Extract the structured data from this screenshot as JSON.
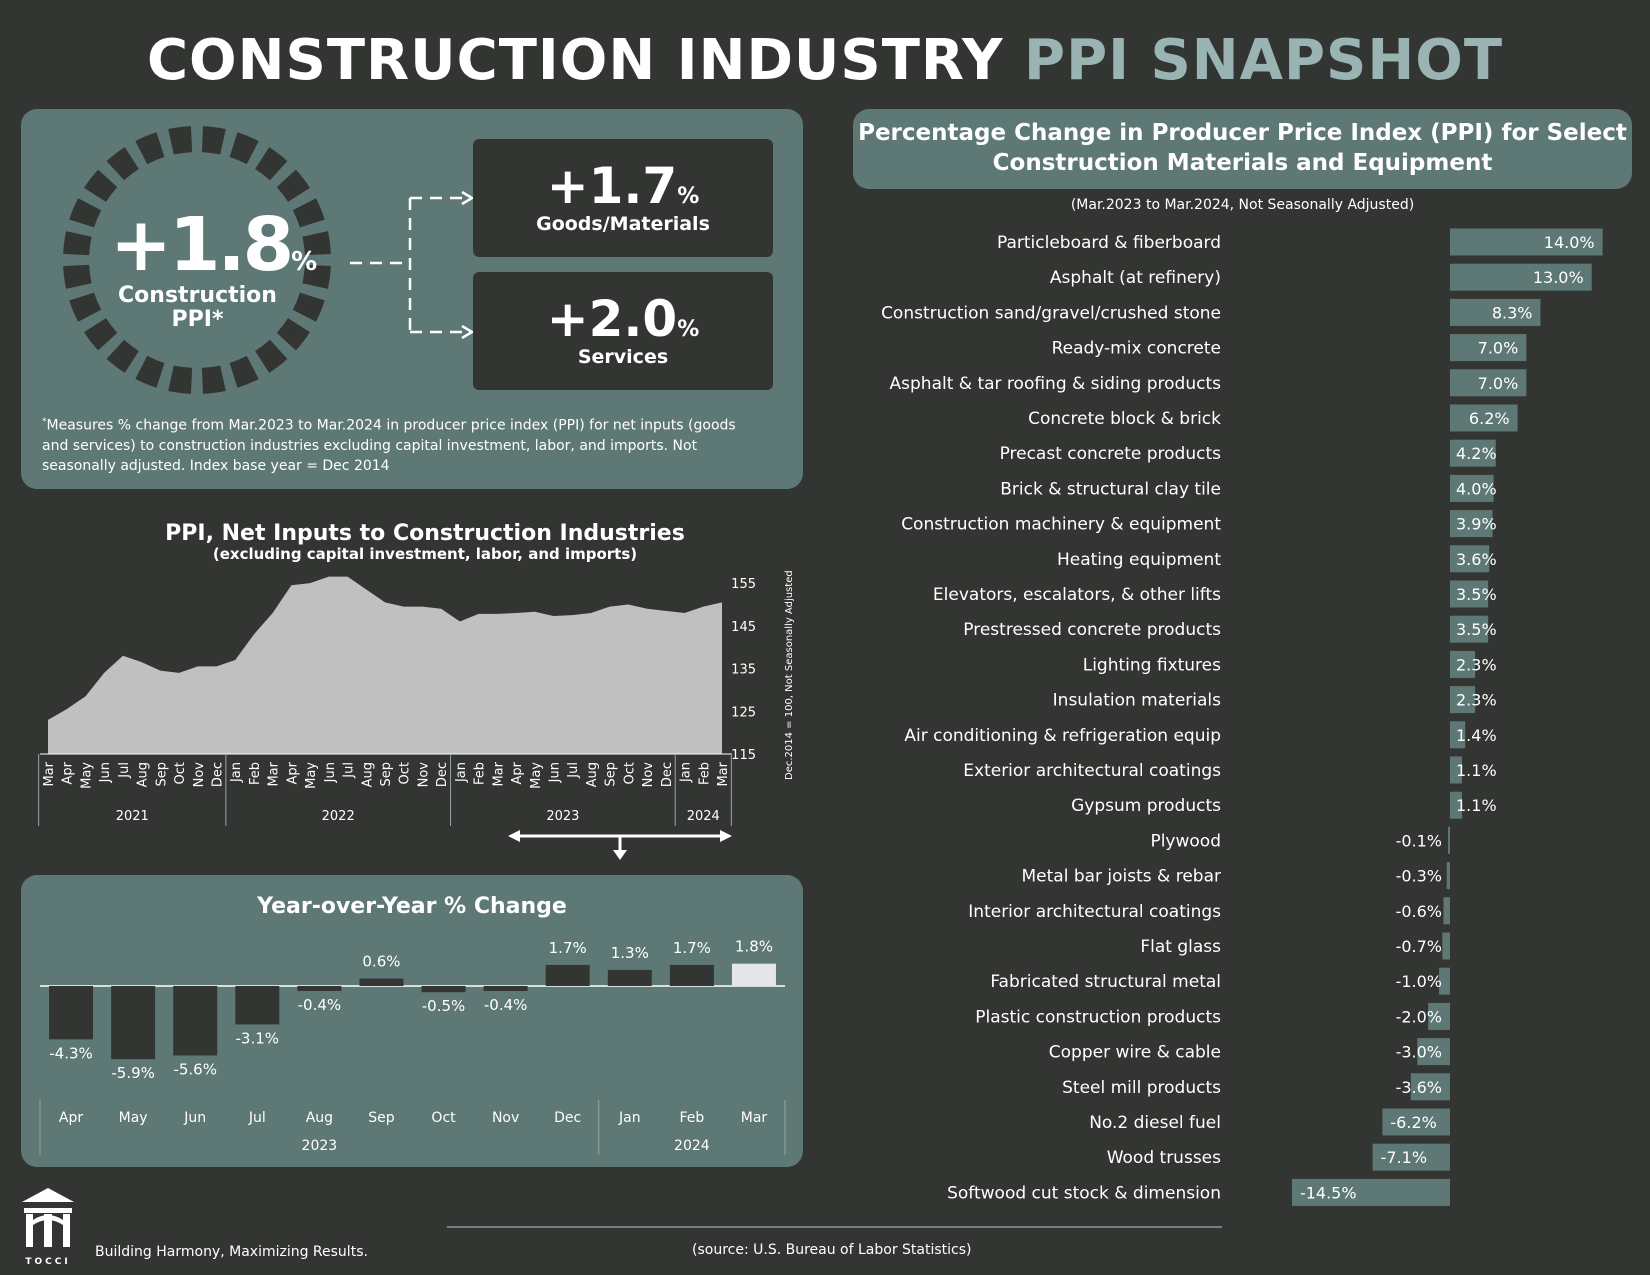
{
  "title": {
    "main": "CONSTRUCTION INDUSTRY",
    "accent": "PPI SNAPSHOT"
  },
  "colors": {
    "background": "#333532",
    "panel": "#5e7875",
    "accent": "#9ab4b3",
    "bar_light": "#e5e5ea",
    "bar_dark": "#333532",
    "area_fill": "#c0c0c0"
  },
  "hero": {
    "main_sign": "+1.8",
    "main_unit": "%",
    "main_label_1": "Construction",
    "main_label_2": "PPI*",
    "goods_value": "+1.7",
    "goods_unit": "%",
    "goods_label": "Goods/Materials",
    "services_value": "+2.0",
    "services_unit": "%",
    "services_label": "Services",
    "footnote_star": "*",
    "footnote_1": "Measures % change from Mar.2023 to Mar.2024 in producer price index (PPI) for net inputs (goods",
    "footnote_2": "and services) to construction industries excluding capital investment, labor, and imports. Not",
    "footnote_3": "seasonally adjusted. Index base year = Dec 2014"
  },
  "right_panel": {
    "title_1": "Percentage Change in Producer Price Index (PPI) for Select",
    "title_2": "Construction Materials and Equipment",
    "subtitle": "(Mar.2023 to Mar.2024, Not Seasonally Adjusted)"
  },
  "footer": {
    "logo_text": "TOCCI",
    "tagline": "Building Harmony, Maximizing Results.",
    "source": "(source: U.S. Bureau of Labor Statistics)"
  },
  "chart_data": [
    {
      "type": "area",
      "title": "PPI, Net Inputs to Construction Industries",
      "subtitle": "(excluding capital investment, labor, and imports)",
      "ylabel": "Dec.2014 = 100, Not Seasonally Adjusted",
      "yticks": [
        115,
        125,
        135,
        145,
        155
      ],
      "ylim": [
        115,
        159
      ],
      "x": [
        "Mar",
        "Apr",
        "May",
        "Jun",
        "Jul",
        "Aug",
        "Sep",
        "Oct",
        "Nov",
        "Dec",
        "Jan",
        "Feb",
        "Mar",
        "Apr",
        "May",
        "Jun",
        "Jul",
        "Aug",
        "Sep",
        "Oct",
        "Nov",
        "Dec",
        "Jan",
        "Feb",
        "Mar",
        "Apr",
        "May",
        "Jun",
        "Jul",
        "Aug",
        "Sep",
        "Oct",
        "Nov",
        "Dec",
        "Jan",
        "Feb",
        "Mar"
      ],
      "year_groups": [
        {
          "label": "2021",
          "start": 0,
          "end": 9
        },
        {
          "label": "2022",
          "start": 10,
          "end": 21
        },
        {
          "label": "2023",
          "start": 22,
          "end": 33
        },
        {
          "label": "2024",
          "start": 34,
          "end": 36
        }
      ],
      "values": [
        123,
        125.5,
        128.5,
        134,
        138,
        136.5,
        134.5,
        134,
        135.5,
        135.5,
        137,
        143,
        148,
        154.5,
        155,
        156.5,
        156.5,
        153.5,
        150.5,
        149.5,
        149.5,
        149,
        146,
        147.8,
        147.8,
        148,
        148.3,
        147.3,
        147.5,
        148,
        149.5,
        150,
        149,
        148.5,
        148,
        149.5,
        150.5
      ]
    },
    {
      "type": "bar",
      "title": "Year-over-Year % Change",
      "categories": [
        "Apr",
        "May",
        "Jun",
        "Jul",
        "Aug",
        "Sep",
        "Oct",
        "Nov",
        "Dec",
        "Jan",
        "Feb",
        "Mar"
      ],
      "values": [
        -4.3,
        -5.9,
        -5.6,
        -3.1,
        -0.4,
        0.6,
        -0.5,
        -0.4,
        1.7,
        1.3,
        1.7,
        1.8
      ],
      "labels": [
        "-4.3%",
        "-5.9%",
        "-5.6%",
        "-3.1%",
        "-0.4%",
        "0.6%",
        "-0.5%",
        "-0.4%",
        "1.7%",
        "1.3%",
        "1.7%",
        "1.8%"
      ],
      "year_groups": [
        {
          "label": "2023",
          "start": 0,
          "end": 8
        },
        {
          "label": "2024",
          "start": 9,
          "end": 11
        }
      ]
    },
    {
      "type": "bar",
      "orientation": "horizontal",
      "title": "Percentage Change in Producer Price Index (PPI) for Select Construction Materials and Equipment",
      "categories": [
        "Particleboard & fiberboard",
        "Asphalt (at refinery)",
        "Construction sand/gravel/crushed stone",
        "Ready-mix concrete",
        "Asphalt & tar roofing & siding products",
        "Concrete block & brick",
        "Precast concrete products",
        "Brick & structural clay tile",
        "Construction machinery & equipment",
        "Heating equipment",
        "Elevators, escalators, & other lifts",
        "Prestressed concrete products",
        "Lighting fixtures",
        "Insulation materials",
        "Air conditioning & refrigeration equip",
        "Exterior architectural coatings",
        "Gypsum products",
        "Plywood",
        "Metal bar joists & rebar",
        "Interior architectural coatings",
        "Flat glass",
        "Fabricated structural metal",
        "Plastic construction products",
        "Copper wire & cable",
        "Steel mill products",
        "No.2 diesel fuel",
        "Wood trusses",
        "Softwood cut stock & dimension"
      ],
      "values": [
        14.0,
        13.0,
        8.3,
        7.0,
        7.0,
        6.2,
        4.2,
        4.0,
        3.9,
        3.6,
        3.5,
        3.5,
        2.3,
        2.3,
        1.4,
        1.1,
        1.1,
        -0.1,
        -0.3,
        -0.6,
        -0.7,
        -1.0,
        -2.0,
        -3.0,
        -3.6,
        -6.2,
        -7.1,
        -14.5
      ],
      "labels": [
        "14.0%",
        "13.0%",
        "8.3%",
        "7.0%",
        "7.0%",
        "6.2%",
        "4.2%",
        "4.0%",
        "3.9%",
        "3.6%",
        "3.5%",
        "3.5%",
        "2.3%",
        "2.3%",
        "1.4%",
        "1.1%",
        "1.1%",
        "-0.1%",
        "-0.3%",
        "-0.6%",
        "-0.7%",
        "-1.0%",
        "-2.0%",
        "-3.0%",
        "-3.6%",
        "-6.2%",
        "-7.1%",
        "-14.5%"
      ],
      "subtitle": "(Mar.2023 to Mar.2024, Not Seasonally Adjusted)"
    }
  ]
}
